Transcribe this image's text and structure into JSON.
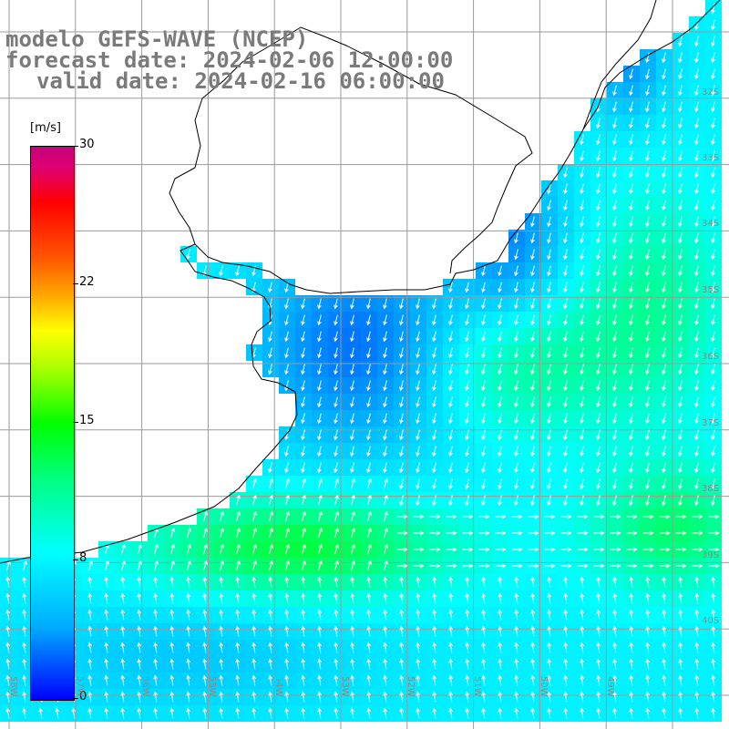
{
  "title": {
    "model": "modelo GEFS-WAVE (NCEP)",
    "forecast": "forecast date: 2024-02-06 12:00:00",
    "valid": "valid date: 2024-02-16 06:00:00"
  },
  "colorbar": {
    "unit": "[m/s]",
    "ticks": [
      "30",
      "22",
      "15",
      "8",
      "0"
    ],
    "colors": [
      "#0000ff",
      "#00aaff",
      "#00ffff",
      "#00ff7f",
      "#00ff00",
      "#ffff00",
      "#ff0000",
      "#c8007d"
    ]
  },
  "map": {
    "latitude_labels": [
      "32S",
      "33S",
      "34S",
      "35S",
      "36S",
      "37S",
      "38S",
      "39S",
      "40S"
    ],
    "longitude_labels": [
      "58W",
      "57W",
      "56W",
      "55W",
      "54W",
      "53W",
      "52W",
      "51W",
      "50W",
      "49W"
    ],
    "land_color": "#ffffff",
    "grid_color": "#9a9a9a"
  }
}
